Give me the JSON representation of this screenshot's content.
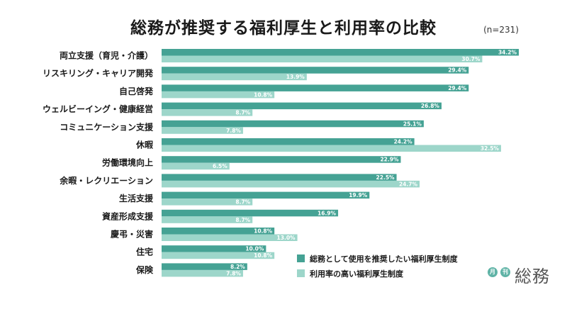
{
  "header": {
    "title": "総務が推奨する福利厚生と利用率の比較",
    "n_label": "(n=231)"
  },
  "logo": {
    "dot1": "月",
    "dot2": "刊",
    "main": "総務"
  },
  "colors": {
    "recommended": "#45a294",
    "usage": "#9dd6ca"
  },
  "chart_data": {
    "type": "bar",
    "orientation": "horizontal",
    "title": "総務が推奨する福利厚生と利用率の比較",
    "categories": [
      "両立支援（育児・介護）",
      "リスキリング・キャリア開発",
      "自己啓発",
      "ウェルビーイング・健康経営",
      "コミュニケーション支援",
      "休暇",
      "労働環境向上",
      "余暇・レクリエーション",
      "生活支援",
      "資産形成支援",
      "慶弔・災害",
      "住宅",
      "保険"
    ],
    "series": [
      {
        "name": "総務として使用を推奨したい福利厚生制度",
        "values": [
          34.2,
          29.4,
          29.4,
          26.8,
          25.1,
          24.2,
          22.9,
          22.5,
          19.9,
          16.9,
          10.8,
          10.0,
          8.2
        ],
        "labels": [
          "34.2%",
          "29.4%",
          "29.4%",
          "26.8%",
          "25.1%",
          "24.2%",
          "22.9%",
          "22.5%",
          "19.9%",
          "16.9%",
          "10.8%",
          "10.0%",
          "8.2%"
        ]
      },
      {
        "name": "利用率の高い福利厚生制度",
        "values": [
          30.7,
          13.9,
          10.8,
          8.7,
          7.8,
          32.5,
          6.5,
          24.7,
          8.7,
          8.7,
          13.0,
          10.8,
          7.8
        ],
        "labels": [
          "30.7%",
          "13.9%",
          "10.8%",
          "8.7%",
          "7.8%",
          "32.5%",
          "6.5%",
          "24.7%",
          "8.7%",
          "8.7%",
          "13.0%",
          "10.8%",
          "7.8%"
        ]
      }
    ],
    "xlim": [
      0,
      34.2
    ],
    "grid": false,
    "legend_position": "bottom-right"
  }
}
